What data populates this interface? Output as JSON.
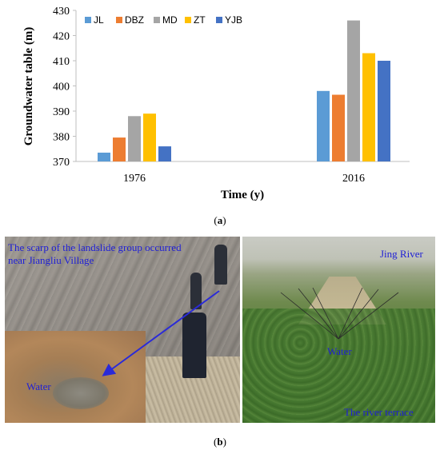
{
  "chart_data": {
    "type": "bar",
    "categories": [
      "1976",
      "2016"
    ],
    "series": [
      {
        "name": "JL",
        "values": [
          373.5,
          398
        ],
        "color": "#5B9BD5"
      },
      {
        "name": "DBZ",
        "values": [
          379.5,
          396.5
        ],
        "color": "#ED7D31"
      },
      {
        "name": "MD",
        "values": [
          388,
          426
        ],
        "color": "#A5A5A5"
      },
      {
        "name": "ZT",
        "values": [
          389,
          413
        ],
        "color": "#FFC000"
      },
      {
        "name": "YJB",
        "values": [
          376,
          410
        ],
        "color": "#4472C4"
      }
    ],
    "ylim": [
      370,
      430
    ],
    "yticks": [
      "370",
      "380",
      "390",
      "400",
      "410",
      "420",
      "430"
    ],
    "xlabel": "Time (y)",
    "ylabel": "Groundwater table (m)",
    "legend_position": "top-left",
    "grid": false
  },
  "captions": {
    "a_open": "(",
    "a_letter": "a",
    "a_close": ")",
    "b_open": "(",
    "b_letter": "b",
    "b_close": ")"
  },
  "photos": {
    "left_label_1": "The scarp of the landslide group occurred",
    "left_label_2": "near Jiangliu Village",
    "left_water": "Water",
    "right_river": "Jing River",
    "right_water": "Water",
    "right_terrace": "The river terrace"
  }
}
